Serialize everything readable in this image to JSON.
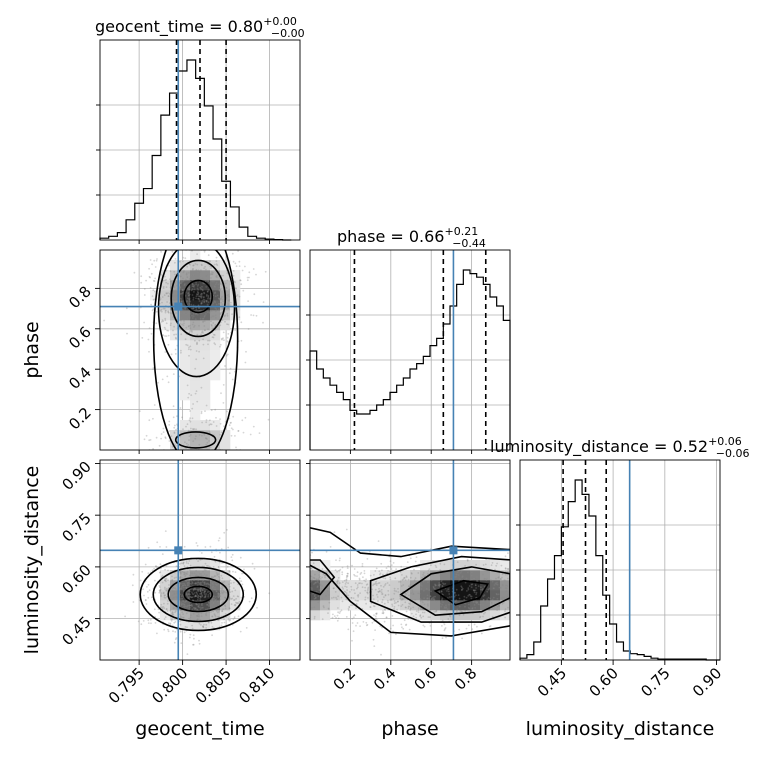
{
  "chart_data": {
    "type": "corner",
    "parameters": [
      {
        "key": "geocent_time",
        "label": "geocent_time",
        "title_prefix": "geocent_time = ",
        "title_median": "0.80",
        "title_plus": "+0.00",
        "title_minus": "−0.00",
        "range": [
          0.7905,
          0.8135
        ],
        "ticks": [
          0.795,
          0.8,
          0.805,
          0.81
        ],
        "tick_labels": [
          "0.795",
          "0.800",
          "0.805",
          "0.810"
        ],
        "truth": 0.7995,
        "quantiles": [
          0.7993,
          0.802,
          0.805
        ],
        "hist_edges": [
          0.7905,
          0.7915,
          0.7925,
          0.7935,
          0.7945,
          0.7955,
          0.7965,
          0.7975,
          0.7985,
          0.7995,
          0.8005,
          0.8015,
          0.8025,
          0.8035,
          0.8045,
          0.8055,
          0.8065,
          0.8075,
          0.8085,
          0.8095,
          0.8105,
          0.8115,
          0.8125
        ],
        "hist_counts": [
          0.01,
          0.02,
          0.04,
          0.11,
          0.2,
          0.28,
          0.46,
          0.68,
          0.8,
          0.92,
          0.98,
          0.88,
          0.73,
          0.55,
          0.32,
          0.18,
          0.07,
          0.02,
          0.01,
          0.005,
          0.002,
          0.0
        ]
      },
      {
        "key": "phase",
        "label": "phase",
        "title_prefix": "phase = ",
        "title_median": "0.66",
        "title_plus": "+0.21",
        "title_minus": "−0.44",
        "range": [
          0.0,
          0.99
        ],
        "ticks": [
          0.2,
          0.4,
          0.6,
          0.8
        ],
        "tick_labels": [
          "0.2",
          "0.4",
          "0.6",
          "0.8"
        ],
        "truth": 0.71,
        "quantiles": [
          0.22,
          0.66,
          0.87
        ],
        "hist_edges": [
          0.0,
          0.033,
          0.066,
          0.099,
          0.132,
          0.165,
          0.198,
          0.231,
          0.264,
          0.297,
          0.33,
          0.363,
          0.396,
          0.429,
          0.462,
          0.495,
          0.528,
          0.561,
          0.594,
          0.627,
          0.66,
          0.693,
          0.726,
          0.759,
          0.792,
          0.825,
          0.858,
          0.891,
          0.924,
          0.957,
          0.99
        ],
        "hist_counts": [
          0.55,
          0.45,
          0.4,
          0.36,
          0.32,
          0.28,
          0.22,
          0.2,
          0.2,
          0.22,
          0.25,
          0.28,
          0.32,
          0.36,
          0.4,
          0.45,
          0.48,
          0.52,
          0.58,
          0.62,
          0.7,
          0.8,
          0.92,
          1.0,
          0.98,
          0.96,
          0.92,
          0.85,
          0.8,
          0.72
        ]
      },
      {
        "key": "luminosity_distance",
        "label": "luminosity_distance",
        "title_prefix": "luminosity_distance = ",
        "title_median": "0.52",
        "title_plus": "+0.06",
        "title_minus": "−0.06",
        "range": [
          0.33,
          0.91
        ],
        "ticks": [
          0.45,
          0.6,
          0.75,
          0.9
        ],
        "tick_labels": [
          "0.45",
          "0.60",
          "0.75",
          "0.90"
        ],
        "truth": 0.648,
        "quantiles": [
          0.455,
          0.52,
          0.58
        ],
        "hist_edges": [
          0.33,
          0.35,
          0.37,
          0.39,
          0.41,
          0.43,
          0.45,
          0.47,
          0.49,
          0.51,
          0.53,
          0.55,
          0.57,
          0.59,
          0.61,
          0.63,
          0.65,
          0.67,
          0.69,
          0.71,
          0.73,
          0.75,
          0.77,
          0.79,
          0.81,
          0.83,
          0.85,
          0.87,
          0.89,
          0.91
        ],
        "hist_counts": [
          0.01,
          0.03,
          0.1,
          0.3,
          0.45,
          0.58,
          0.74,
          0.88,
          1.0,
          0.92,
          0.8,
          0.58,
          0.36,
          0.2,
          0.1,
          0.05,
          0.035,
          0.03,
          0.02,
          0.01,
          0.005,
          0.005,
          0.005,
          0.005,
          0.005,
          0.005,
          0.005,
          0.0,
          0.0
        ]
      }
    ],
    "pairs": [
      {
        "x": "geocent_time",
        "y": "phase",
        "density": "bimodal: main mode near (0.802, 0.75); secondary mode near (0.802, 0.05)",
        "contour_levels": 4
      },
      {
        "x": "geocent_time",
        "y": "luminosity_distance",
        "density": "single mode near (0.802, 0.52)",
        "contour_levels": 4
      },
      {
        "x": "phase",
        "y": "luminosity_distance",
        "density": "elongated band rising from (0.0, 0.55) to (0.95, 0.55); mode near (0.72, 0.52)",
        "contour_levels": 4
      }
    ],
    "truth_color": "#4682b4",
    "grid": true
  }
}
